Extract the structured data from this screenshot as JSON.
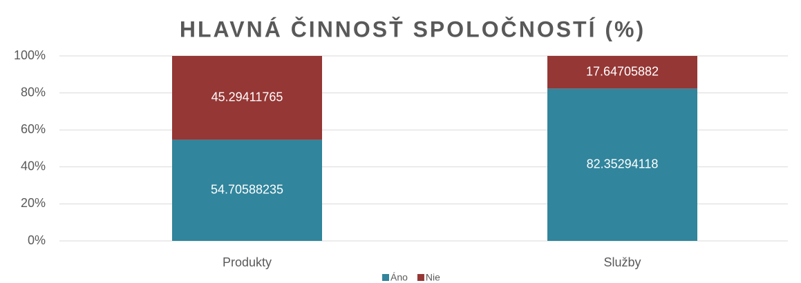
{
  "chart_data": {
    "type": "stacked_bar",
    "title": "HLAVNÁ ČINNOSŤ SPOLOČNOSTÍ (%)",
    "categories": [
      "Produkty",
      "Služby"
    ],
    "series": [
      {
        "name": "Áno",
        "color": "#31859c",
        "values": [
          54.70588235,
          82.35294118
        ]
      },
      {
        "name": "Nie",
        "color": "#953735",
        "values": [
          45.29411765,
          17.64705882
        ]
      }
    ],
    "ylim": [
      0,
      100
    ],
    "yticks": [
      {
        "value": 0,
        "label": "0%"
      },
      {
        "value": 20,
        "label": "20%"
      },
      {
        "value": 40,
        "label": "40%"
      },
      {
        "value": 60,
        "label": "60%"
      },
      {
        "value": 80,
        "label": "80%"
      },
      {
        "value": 100,
        "label": "100%"
      }
    ],
    "grid": true,
    "legend": "bottom"
  }
}
